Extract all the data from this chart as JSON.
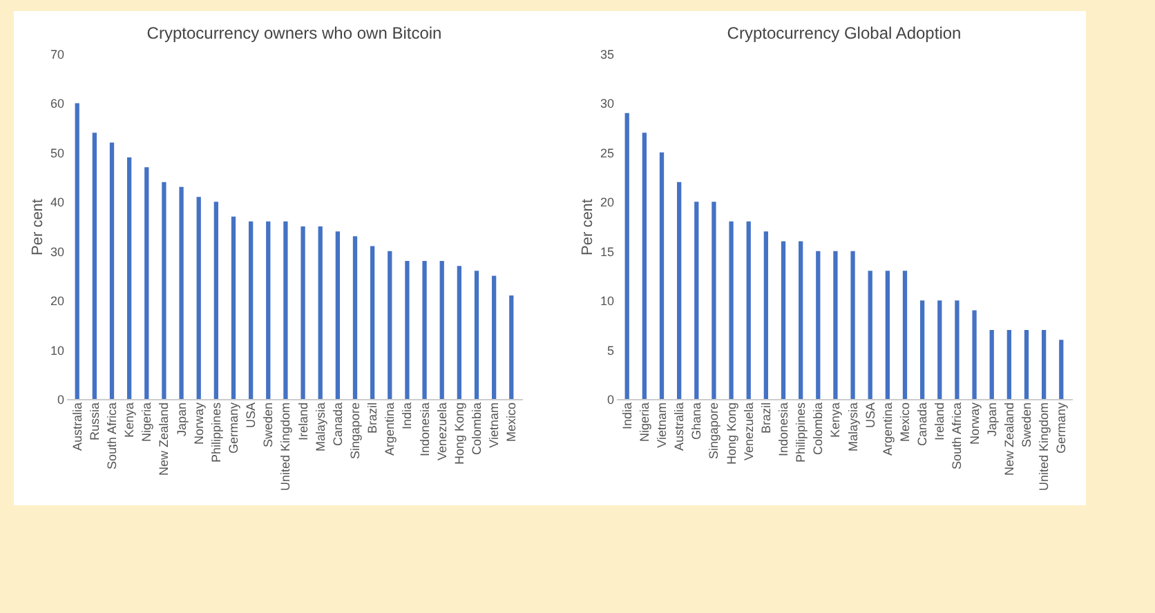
{
  "chart_data": [
    {
      "type": "bar",
      "title": "Cryptocurrency owners who own Bitcoin",
      "ylabel": "Per cent",
      "categories": [
        "Australia",
        "Russia",
        "South Africa",
        "Kenya",
        "Nigeria",
        "New Zealand",
        "Japan",
        "Norway",
        "Philippines",
        "Germany",
        "USA",
        "Sweden",
        "United Kingdom",
        "Ireland",
        "Malaysia",
        "Canada",
        "Singapore",
        "Brazil",
        "Argentina",
        "India",
        "Indonesia",
        "Venezuela",
        "Hong Kong",
        "Colombia",
        "Vietnam",
        "Mexico"
      ],
      "values": [
        60,
        54,
        52,
        49,
        47,
        44,
        43,
        41,
        40,
        37,
        36,
        36,
        36,
        35,
        35,
        34,
        33,
        31,
        30,
        28,
        28,
        28,
        27,
        26,
        25,
        21
      ],
      "color": "#4472c4",
      "ylim": [
        0,
        70
      ],
      "yticks": [
        0,
        10,
        20,
        30,
        40,
        50,
        60,
        70
      ],
      "grid": false
    },
    {
      "type": "bar",
      "title": "Cryptocurrency Global Adoption",
      "ylabel": "Per cent",
      "categories": [
        "India",
        "Nigeria",
        "Vietnam",
        "Australia",
        "Ghana",
        "Singapore",
        "Hong Kong",
        "Venezuela",
        "Brazil",
        "Indonesia",
        "Philippines",
        "Colombia",
        "Kenya",
        "Malaysia",
        "USA",
        "Argentina",
        "Mexico",
        "Canada",
        "Ireland",
        "South Africa",
        "Norway",
        "Japan",
        "New Zealand",
        "Sweden",
        "United Kingdom",
        "Germany"
      ],
      "values": [
        29,
        27,
        25,
        22,
        20,
        20,
        18,
        18,
        17,
        16,
        16,
        15,
        15,
        15,
        13,
        13,
        13,
        10,
        10,
        10,
        9,
        7,
        7,
        7,
        7,
        6
      ],
      "color": "#4472c4",
      "ylim": [
        0,
        35
      ],
      "yticks": [
        0,
        5,
        10,
        15,
        20,
        25,
        30,
        35
      ],
      "grid": false
    }
  ]
}
